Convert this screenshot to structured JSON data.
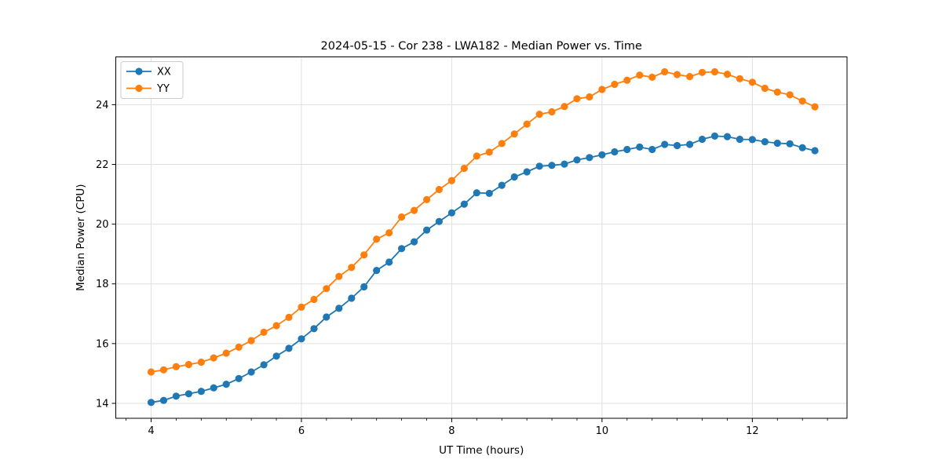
{
  "chart_data": {
    "type": "line",
    "title": "2024-05-15 - Cor 238 - LWA182 - Median Power vs. Time",
    "xlabel": "UT Time (hours)",
    "ylabel": "Median Power (CPU)",
    "xlim": [
      3.53,
      13.26
    ],
    "ylim": [
      13.5,
      25.6
    ],
    "x_ticks": [
      4,
      6,
      8,
      10,
      12
    ],
    "y_ticks": [
      14,
      16,
      18,
      20,
      22,
      24
    ],
    "x_minor_tick_step": 0.33333,
    "grid": true,
    "legend_position": "upper left",
    "marker": "circle",
    "grid_color": "#e0e0e0",
    "x": [
      4.0,
      4.167,
      4.333,
      4.5,
      4.667,
      4.833,
      5.0,
      5.167,
      5.333,
      5.5,
      5.667,
      5.833,
      6.0,
      6.167,
      6.333,
      6.5,
      6.667,
      6.833,
      7.0,
      7.167,
      7.333,
      7.5,
      7.667,
      7.833,
      8.0,
      8.167,
      8.333,
      8.5,
      8.667,
      8.833,
      9.0,
      9.167,
      9.333,
      9.5,
      9.667,
      9.833,
      10.0,
      10.167,
      10.333,
      10.5,
      10.667,
      10.833,
      11.0,
      11.167,
      11.333,
      11.5,
      11.667,
      11.833,
      12.0,
      12.167,
      12.333,
      12.5,
      12.667,
      12.833
    ],
    "series": [
      {
        "name": "XX",
        "color": "#1f77b4",
        "values": [
          14.03,
          14.1,
          14.24,
          14.32,
          14.4,
          14.52,
          14.64,
          14.83,
          15.05,
          15.29,
          15.58,
          15.84,
          16.16,
          16.5,
          16.89,
          17.18,
          17.52,
          17.9,
          18.45,
          18.73,
          19.18,
          19.41,
          19.8,
          20.09,
          20.38,
          20.67,
          21.05,
          21.03,
          21.3,
          21.58,
          21.75,
          21.94,
          21.97,
          22.01,
          22.15,
          22.23,
          22.32,
          22.42,
          22.5,
          22.58,
          22.5,
          22.67,
          22.63,
          22.67,
          22.84,
          22.95,
          22.93,
          22.84,
          22.83,
          22.76,
          22.71,
          22.69,
          22.56,
          22.46
        ]
      },
      {
        "name": "YY",
        "color": "#ff7f0e",
        "values": [
          15.05,
          15.12,
          15.23,
          15.3,
          15.38,
          15.52,
          15.68,
          15.88,
          16.1,
          16.38,
          16.6,
          16.88,
          17.22,
          17.48,
          17.84,
          18.25,
          18.55,
          18.97,
          19.5,
          19.71,
          20.24,
          20.46,
          20.82,
          21.16,
          21.46,
          21.87,
          22.28,
          22.41,
          22.7,
          23.02,
          23.35,
          23.68,
          23.76,
          23.94,
          24.2,
          24.26,
          24.51,
          24.68,
          24.82,
          24.99,
          24.92,
          25.1,
          25.01,
          24.94,
          25.08,
          25.1,
          25.02,
          24.87,
          24.75,
          24.55,
          24.42,
          24.33,
          24.12,
          23.93
        ]
      }
    ]
  }
}
